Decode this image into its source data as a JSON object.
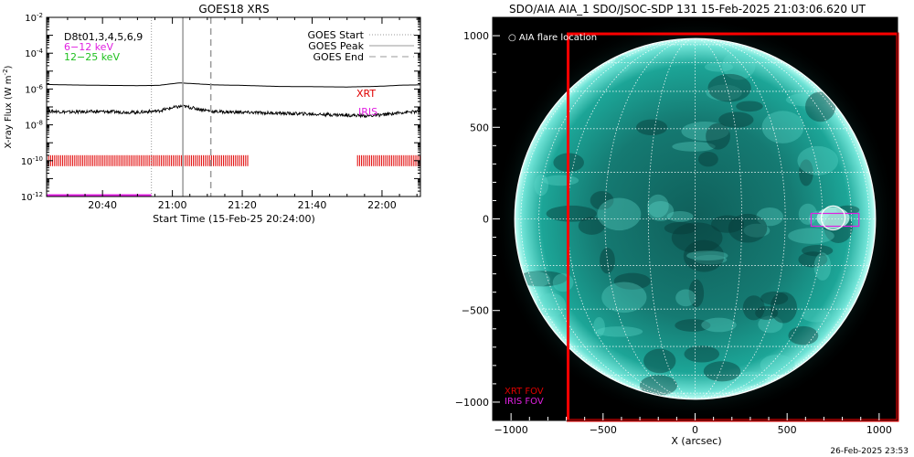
{
  "chart_data": [
    {
      "type": "line",
      "title": "GOES18 XRS",
      "xlabel": "Start Time (15-Feb-25 20:24:00)",
      "ylabel": "X-ray Flux (W m",
      "ylabel_sup": "-2",
      "ylabel_end": ")",
      "x_ticks": [
        "20:40",
        "21:00",
        "21:20",
        "21:40",
        "22:00"
      ],
      "x_tick_minutes": [
        40,
        60,
        80,
        100,
        120
      ],
      "x_range_minutes": [
        24,
        131
      ],
      "y_scale": "log",
      "ylim": [
        1e-12,
        0.01
      ],
      "y_tick_bases": [
        "10",
        "10",
        "10",
        "10",
        "10",
        "10"
      ],
      "y_tick_exps": [
        "-12",
        "-10",
        "-8",
        "-6",
        "-4",
        "-2"
      ],
      "y_tick_values": [
        1e-12,
        1e-10,
        1e-08,
        1e-06,
        0.0001,
        0.01
      ],
      "legend_left": [
        {
          "text": "D8t01,3,4,5,6,9",
          "color": "#000000"
        },
        {
          "text": "6−12 keV",
          "color": "#e020e0"
        },
        {
          "text": "12−25 keV",
          "color": "#20c020"
        }
      ],
      "legend_right": [
        {
          "text": "GOES Start",
          "style": "dotted"
        },
        {
          "text": "GOES Peak",
          "style": "solid"
        },
        {
          "text": "GOES End",
          "style": "dashed"
        }
      ],
      "goes_start_minute": 54,
      "goes_peak_minute": 63,
      "goes_end_minute": 71,
      "series": [
        {
          "color": "#000000",
          "x": [
            24,
            30,
            40,
            50,
            56,
            62,
            66,
            72,
            80,
            90,
            100,
            110,
            118,
            122,
            126,
            131
          ],
          "values": [
            1.8e-06,
            1.7e-06,
            1.6e-06,
            1.55e-06,
            1.6e-06,
            2.2e-06,
            2e-06,
            1.7e-06,
            1.6e-06,
            1.4e-06,
            1.35e-06,
            1.3e-06,
            1.4e-06,
            1.5e-06,
            1.65e-06,
            1.7e-06
          ]
        },
        {
          "color": "#000000",
          "x": [
            24,
            30,
            40,
            50,
            56,
            60,
            63,
            67,
            72,
            80,
            90,
            100,
            110,
            116,
            120,
            126,
            131
          ],
          "values": [
            6e-08,
            5.2e-08,
            5.5e-08,
            5e-08,
            6e-08,
            9e-08,
            1.1e-07,
            8e-08,
            5.5e-08,
            5e-08,
            4.5e-08,
            4e-08,
            3.5e-08,
            3.2e-08,
            3.6e-08,
            5e-08,
            5.5e-08
          ]
        }
      ],
      "band_segments": [
        {
          "from": 24,
          "to": 82
        },
        {
          "from": 113,
          "to": 131
        }
      ],
      "band_level": 1e-10,
      "band_color": "#e00000",
      "magenta_line": {
        "from": 24,
        "to": 54,
        "level": 1.2e-12,
        "color": "#e020e0"
      },
      "xrt_label": {
        "text": "XRT",
        "color": "#e00000"
      },
      "iris_label": {
        "text": "IRIS",
        "color": "#e020e0"
      }
    },
    {
      "type": "image",
      "title": "SDO/AIA AIA_1 SDO/JSOC-SDP 131 15-Feb-2025 21:03:06.620 UT",
      "xlabel": "X (arcsec)",
      "x_ticks": [
        "−1000",
        "−500",
        "0",
        "500",
        "1000"
      ],
      "x_tick_values": [
        -1000,
        -500,
        0,
        500,
        1000
      ],
      "y_ticks": [
        "1000",
        "500",
        "0",
        "−500",
        "−1000"
      ],
      "y_tick_values": [
        1000,
        500,
        0,
        -500,
        -1000
      ],
      "x_range": [
        -1100,
        1100
      ],
      "y_range": [
        -1100,
        1100
      ],
      "solar_radius_arcsec": 980,
      "legend_top": {
        "symbol": "○",
        "text": "AIA flare location"
      },
      "legend_bottom": [
        {
          "text": "XRT FOV",
          "color": "#e00000"
        },
        {
          "text": "IRIS FOV",
          "color": "#e020e0"
        }
      ],
      "xrt_fov": {
        "x_min": -690,
        "x_max": 1100,
        "y_min": -1100,
        "y_max": 1010,
        "color": "#ff0000"
      },
      "iris_fov": {
        "x_min": 630,
        "x_max": 890,
        "y_min": -40,
        "y_max": 30,
        "color": "#e020e0"
      },
      "flare_location": {
        "x": 750,
        "y": 5,
        "radius": 65
      },
      "accent_color": "#17b3a8"
    }
  ],
  "timestamp": "26-Feb-2025 23:53"
}
